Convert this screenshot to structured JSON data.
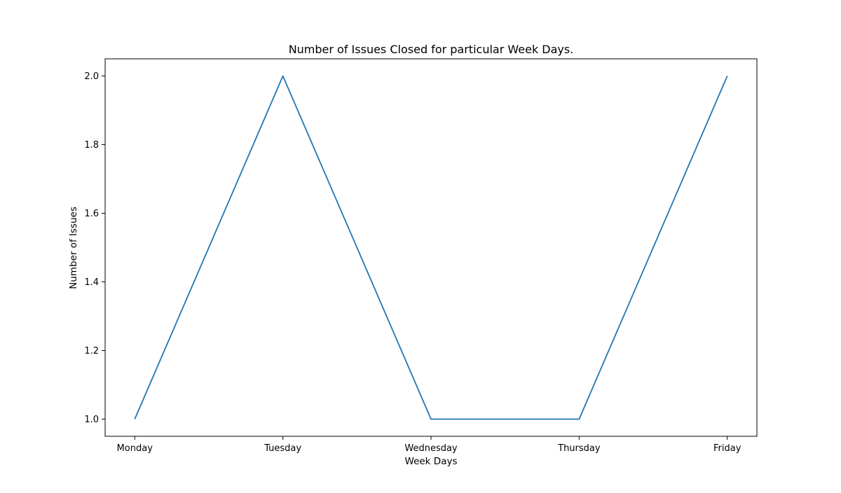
{
  "chart_data": {
    "type": "line",
    "title": "Number of Issues Closed for particular Week Days.",
    "xlabel": "Week Days",
    "ylabel": "Number of Issues",
    "categories": [
      "Monday",
      "Tuesday",
      "Wednesday",
      "Thursday",
      "Friday"
    ],
    "series": [
      {
        "values": [
          1,
          2,
          1,
          1,
          2
        ]
      }
    ],
    "ylim": [
      0.95,
      2.05
    ],
    "yticks": [
      "1.0",
      "1.2",
      "1.4",
      "1.6",
      "1.8",
      "2.0"
    ],
    "grid": false,
    "legend": "none",
    "colors": {
      "line": "#1f77b4",
      "axes": "#000000",
      "background": "#ffffff"
    }
  }
}
